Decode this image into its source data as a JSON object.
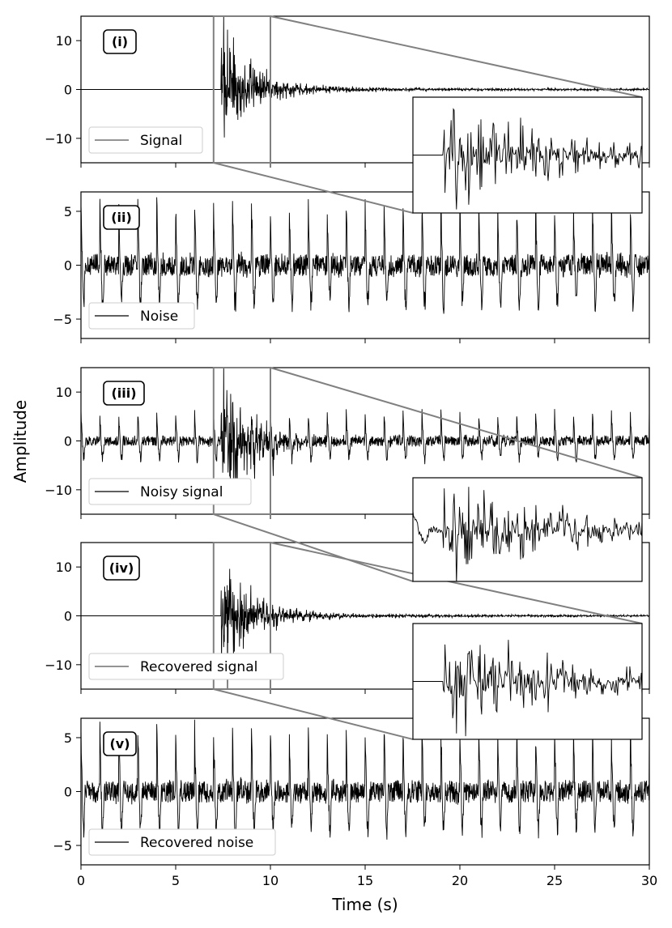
{
  "chart_data": {
    "type": "line",
    "xlabel": "Time (s)",
    "ylabel": "Amplitude",
    "xlim": [
      0,
      30
    ],
    "xticks": [
      "0",
      "5",
      "10",
      "15",
      "20",
      "25",
      "30"
    ],
    "inset_window": {
      "x": [
        7,
        10
      ],
      "color": "#808080"
    },
    "panels": [
      {
        "id": "(i)",
        "legend": "Signal",
        "legend_color": "#555555",
        "ylim": [
          -15,
          15
        ],
        "yticks": [
          {
            "value": 10,
            "label": "10"
          },
          {
            "value": 0,
            "label": "0"
          },
          {
            "value": -10,
            "label": "−10"
          }
        ],
        "kind": "signal",
        "series": {
          "onset_s": 7.4,
          "peak_amplitude": 14,
          "decay_time_s": 1.5,
          "tail_amplitude": 0.5
        },
        "inset": "clean"
      },
      {
        "id": "(ii)",
        "legend": "Noise",
        "legend_color": "#000000",
        "ylim": [
          -6.8,
          6.8
        ],
        "yticks": [
          {
            "value": 5,
            "label": "5"
          },
          {
            "value": 0,
            "label": "0"
          },
          {
            "value": -5,
            "label": "−5"
          }
        ],
        "kind": "noise",
        "series": {
          "pulse_period_s": 1.0,
          "pulse_peak": 5.5,
          "trough": -3.5,
          "background_amplitude": 1.0
        }
      },
      {
        "id": "(iii)",
        "legend": "Noisy signal",
        "legend_color": "#000000",
        "ylim": [
          -15,
          15
        ],
        "yticks": [
          {
            "value": 10,
            "label": "10"
          },
          {
            "value": 0,
            "label": "0"
          },
          {
            "value": -10,
            "label": "−10"
          }
        ],
        "kind": "signal_plus_noise",
        "inset": "noisy"
      },
      {
        "id": "(iv)",
        "legend": "Recovered signal",
        "legend_color": "#555555",
        "ylim": [
          -15,
          15
        ],
        "yticks": [
          {
            "value": 10,
            "label": "10"
          },
          {
            "value": 0,
            "label": "0"
          },
          {
            "value": -10,
            "label": "−10"
          }
        ],
        "kind": "signal",
        "inset": "clean"
      },
      {
        "id": "(v)",
        "legend": "Recovered noise",
        "legend_color": "#000000",
        "ylim": [
          -6.8,
          6.8
        ],
        "yticks": [
          {
            "value": 5,
            "label": "5"
          },
          {
            "value": 0,
            "label": "0"
          },
          {
            "value": -5,
            "label": "−5"
          }
        ],
        "kind": "noise"
      }
    ]
  }
}
